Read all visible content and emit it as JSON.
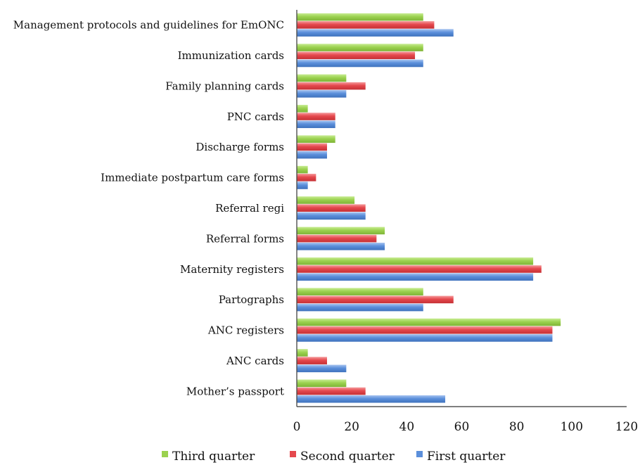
{
  "chart_data": {
    "type": "bar",
    "orientation": "horizontal",
    "title": "",
    "xlabel": "",
    "ylabel": "",
    "xlim": [
      0,
      120
    ],
    "x_ticks": [
      "0",
      "20",
      "40",
      "60",
      "80",
      "100",
      "120"
    ],
    "grid": false,
    "legend_position": "bottom",
    "categories": [
      "Management protocols and guidelines for EmONC",
      "Immunization cards",
      "Family planning cards",
      "PNC cards",
      "Discharge forms",
      "Immediate postpartum care forms",
      "Referral regi",
      "Referral forms",
      "Maternity registers",
      "Partographs",
      "ANC registers",
      "ANC cards",
      "Mother’s passport"
    ],
    "series": [
      {
        "name": "Third quarter",
        "color": "#9BD24F",
        "values": [
          46,
          46,
          18,
          4,
          14,
          4,
          21,
          32,
          86,
          46,
          96,
          4,
          18
        ]
      },
      {
        "name": "Second quarter",
        "color": "#E5484D",
        "values": [
          50,
          43,
          25,
          14,
          11,
          7,
          25,
          29,
          89,
          57,
          93,
          11,
          25
        ]
      },
      {
        "name": "First quarter",
        "color": "#5B8FDB",
        "values": [
          57,
          46,
          18,
          14,
          11,
          4,
          25,
          32,
          86,
          46,
          93,
          18,
          54
        ]
      }
    ]
  }
}
